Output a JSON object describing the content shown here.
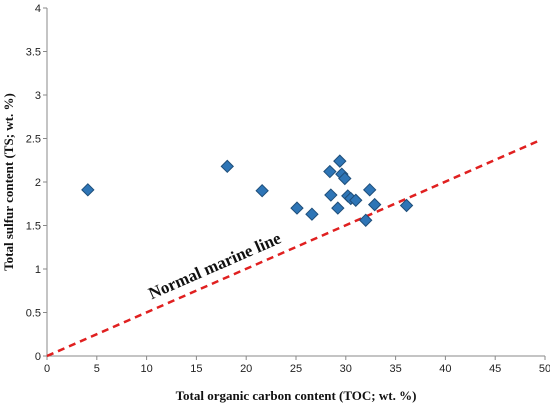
{
  "chart_data": {
    "type": "scatter",
    "title": "",
    "xlabel": "Total organic carbon content (TOC; wt. %)",
    "ylabel": "Total sulfur content (TS; wt. %)",
    "xlim": [
      0,
      50
    ],
    "ylim": [
      0,
      4
    ],
    "x_ticks": [
      "0",
      "5",
      "10",
      "15",
      "20",
      "25",
      "30",
      "35",
      "40",
      "45",
      "50"
    ],
    "y_ticks": [
      "0",
      "0.5",
      "1",
      "1.5",
      "2",
      "2.5",
      "3",
      "3.5",
      "4"
    ],
    "grid": false,
    "marker": "diamond",
    "marker_color": "#2E75B6",
    "marker_edge": "#1F4E79",
    "series": [
      {
        "points": [
          {
            "x": 4.1,
            "y": 1.91
          },
          {
            "x": 18.1,
            "y": 2.18
          },
          {
            "x": 21.6,
            "y": 1.9
          },
          {
            "x": 25.1,
            "y": 1.7
          },
          {
            "x": 26.6,
            "y": 1.63
          },
          {
            "x": 28.4,
            "y": 2.12
          },
          {
            "x": 28.5,
            "y": 1.85
          },
          {
            "x": 29.2,
            "y": 1.7
          },
          {
            "x": 29.4,
            "y": 2.24
          },
          {
            "x": 29.6,
            "y": 2.09
          },
          {
            "x": 29.9,
            "y": 2.04
          },
          {
            "x": 30.2,
            "y": 1.84
          },
          {
            "x": 30.5,
            "y": 1.81
          },
          {
            "x": 31.0,
            "y": 1.79
          },
          {
            "x": 32.0,
            "y": 1.56
          },
          {
            "x": 32.4,
            "y": 1.91
          },
          {
            "x": 32.9,
            "y": 1.74
          },
          {
            "x": 36.1,
            "y": 1.73
          }
        ]
      }
    ],
    "reference_line": {
      "label": "Normal marine line",
      "x": [
        0,
        49.5
      ],
      "y": [
        0,
        2.48
      ],
      "color": "#E02020",
      "style": "dashed"
    }
  }
}
